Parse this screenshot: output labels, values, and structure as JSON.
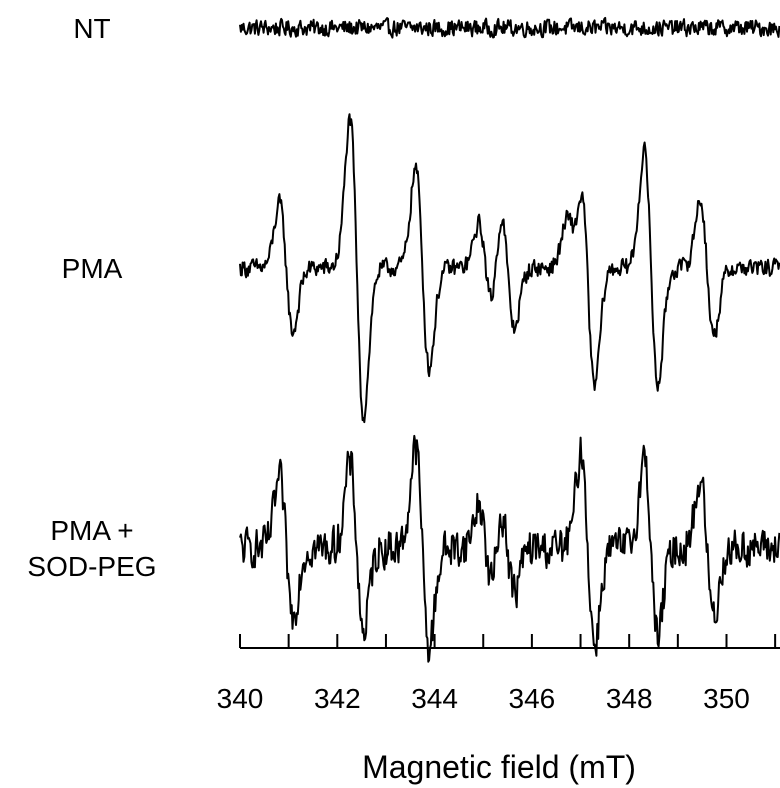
{
  "chart_data": {
    "type": "line",
    "title": "",
    "xlabel": "Magnetic field (mT)",
    "ylabel": "",
    "xlim": [
      340,
      351.1
    ],
    "x_ticks": [
      340,
      341,
      342,
      343,
      344,
      345,
      346,
      347,
      348,
      349,
      350,
      351
    ],
    "x_tick_labels": [
      "340",
      "342",
      "344",
      "346",
      "348",
      "350"
    ],
    "x_tick_label_values": [
      340,
      342,
      344,
      346,
      348,
      350
    ],
    "grid": false,
    "legend": "none",
    "series": [
      {
        "label": "NT",
        "label_lines": [
          "NT"
        ],
        "baseline": 0,
        "peaks": [],
        "noise": 0.13,
        "line_color": "#000000"
      },
      {
        "label": "PMA",
        "label_lines": [
          "PMA"
        ],
        "baseline": 0,
        "peaks": [
          {
            "x": 340.95,
            "amp": 0.8
          },
          {
            "x": 342.4,
            "amp": 1.85
          },
          {
            "x": 343.75,
            "amp": 1.25
          },
          {
            "x": 345.05,
            "amp": 0.55
          },
          {
            "x": 345.5,
            "amp": 0.75
          },
          {
            "x": 346.85,
            "amp": 0.55
          },
          {
            "x": 347.15,
            "amp": 1.45
          },
          {
            "x": 348.45,
            "amp": 1.45
          },
          {
            "x": 349.6,
            "amp": 0.85
          }
        ],
        "noise": 0.14,
        "line_color": "#000000"
      },
      {
        "label": "PMA + SOD-PEG",
        "label_lines": [
          "PMA +",
          "SOD-PEG"
        ],
        "baseline": 0,
        "peaks": [
          {
            "x": 340.95,
            "amp": 0.85
          },
          {
            "x": 342.4,
            "amp": 1.05
          },
          {
            "x": 343.75,
            "amp": 1.25
          },
          {
            "x": 345.05,
            "amp": 0.55
          },
          {
            "x": 345.5,
            "amp": 0.55
          },
          {
            "x": 347.15,
            "amp": 1.2
          },
          {
            "x": 348.45,
            "amp": 1.1
          },
          {
            "x": 349.6,
            "amp": 0.85
          }
        ],
        "noise": 0.3,
        "line_color": "#000000"
      }
    ]
  }
}
